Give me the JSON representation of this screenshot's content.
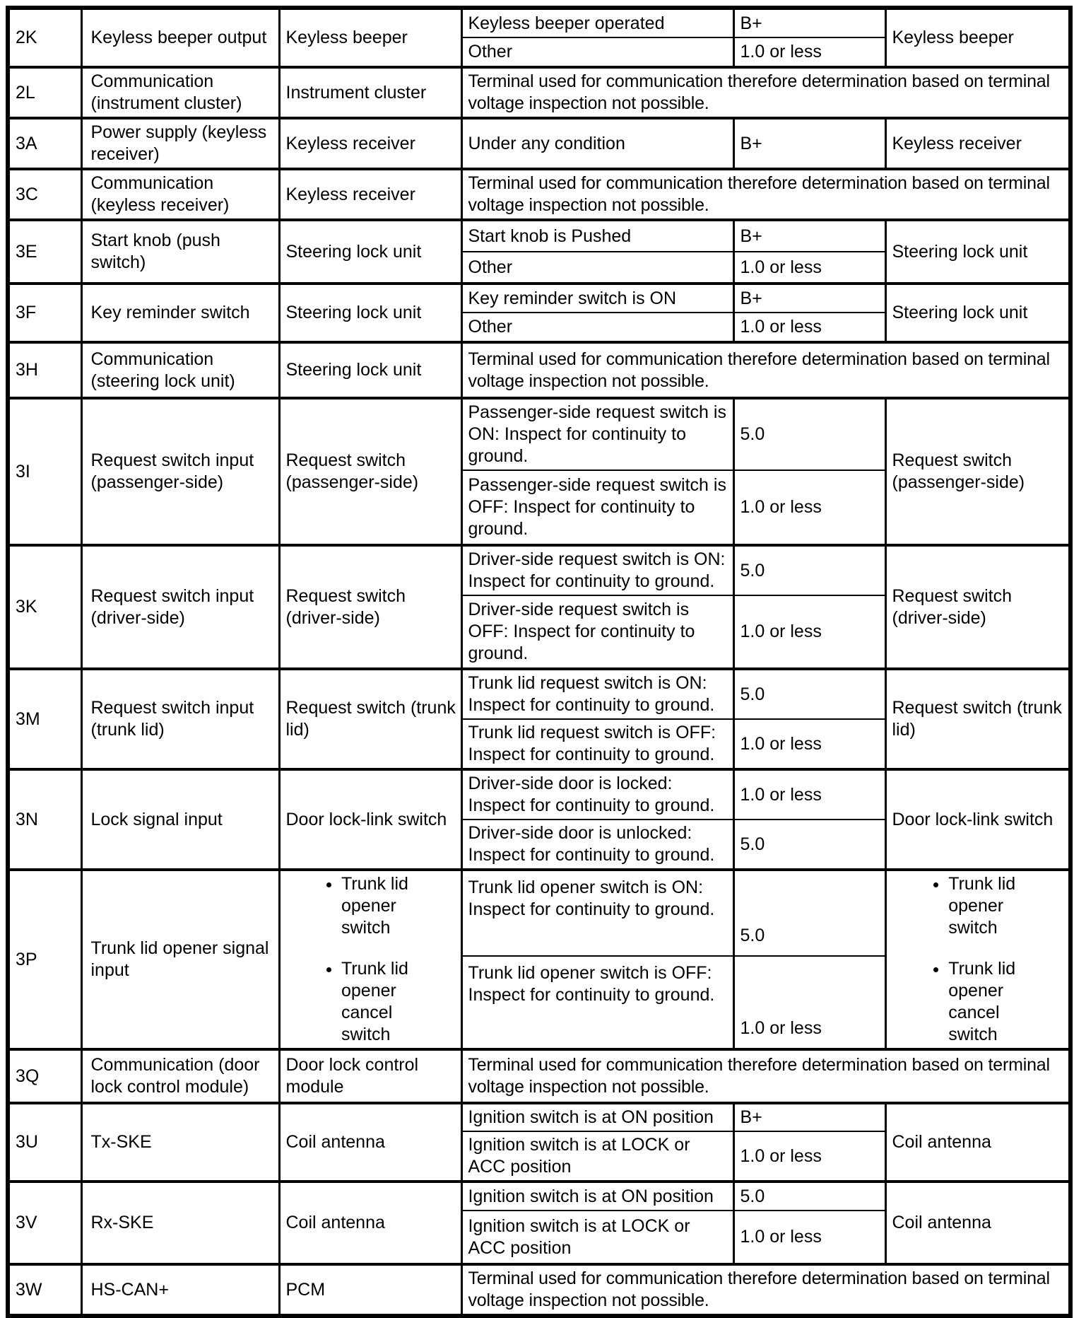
{
  "table": {
    "note_text": "Terminal used for communication therefore determination based on terminal voltage inspection not possible.",
    "rows": [
      {
        "terminal": "2K",
        "signal": "Keyless beeper output",
        "connected": "Keyless beeper",
        "conditions": [
          {
            "condition": "Keyless beeper operated",
            "voltage": "B+"
          },
          {
            "condition": "Other",
            "voltage": "1.0 or less"
          }
        ],
        "inspection": "Keyless beeper"
      },
      {
        "terminal": "2L",
        "signal": "Communication (instrument cluster)",
        "connected": "Instrument cluster",
        "note": true
      },
      {
        "terminal": "3A",
        "signal": "Power supply (keyless receiver)",
        "connected": "Keyless receiver",
        "conditions": [
          {
            "condition": "Under any condition",
            "voltage": "B+"
          }
        ],
        "inspection": "Keyless receiver"
      },
      {
        "terminal": "3C",
        "signal": "Communication (keyless receiver)",
        "connected": "Keyless receiver",
        "note": true
      },
      {
        "terminal": "3E",
        "signal": "Start knob (push switch)",
        "connected": "Steering lock unit",
        "conditions": [
          {
            "condition": "Start knob is Pushed",
            "voltage": "B+"
          },
          {
            "condition": "Other",
            "voltage": "1.0 or less"
          }
        ],
        "inspection": "Steering lock unit"
      },
      {
        "terminal": "3F",
        "signal": "Key reminder switch",
        "connected": "Steering lock unit",
        "conditions": [
          {
            "condition": "Key reminder switch is ON",
            "voltage": "B+"
          },
          {
            "condition": "Other",
            "voltage": "1.0 or less"
          }
        ],
        "inspection": "Steering lock unit"
      },
      {
        "terminal": "3H",
        "signal": "Communication (steering lock unit)",
        "connected": "Steering lock unit",
        "note": true
      },
      {
        "terminal": "3I",
        "signal": "Request switch input (passenger-side)",
        "connected": "Request switch (passenger-side)",
        "conditions": [
          {
            "condition": "Passenger-side request switch is ON: Inspect for continuity to ground.",
            "voltage": "5.0"
          },
          {
            "condition": "Passenger-side request switch is OFF: Inspect for continuity to ground.",
            "voltage": "1.0 or less"
          }
        ],
        "inspection": "Request switch (passenger-side)"
      },
      {
        "terminal": "3K",
        "signal": "Request switch input (driver-side)",
        "connected": "Request switch (driver-side)",
        "conditions": [
          {
            "condition": "Driver-side request switch is ON: Inspect for continuity to ground.",
            "voltage": "5.0"
          },
          {
            "condition": "Driver-side request switch is OFF: Inspect for continuity to ground.",
            "voltage": "1.0 or less"
          }
        ],
        "inspection": "Request switch (driver-side)"
      },
      {
        "terminal": "3M",
        "signal": "Request switch input (trunk lid)",
        "connected": "Request switch (trunk lid)",
        "conditions": [
          {
            "condition": "Trunk lid request switch is ON: Inspect for continuity to ground.",
            "voltage": "5.0"
          },
          {
            "condition": "Trunk lid request switch is OFF: Inspect for continuity to ground.",
            "voltage": "1.0 or less"
          }
        ],
        "inspection": "Request switch (trunk lid)"
      },
      {
        "terminal": "3N",
        "signal": "Lock signal input",
        "connected": "Door lock-link switch",
        "conditions": [
          {
            "condition": "Driver-side door is locked: Inspect for continuity to ground.",
            "voltage": "1.0 or less"
          },
          {
            "condition": "Driver-side door is unlocked: Inspect for continuity to ground.",
            "voltage": "5.0"
          }
        ],
        "inspection": "Door lock-link switch"
      },
      {
        "terminal": "3P",
        "signal": "Trunk lid opener signal input",
        "connected_list": [
          "Trunk lid opener switch",
          "Trunk lid opener cancel switch"
        ],
        "conditions": [
          {
            "condition": "Trunk lid opener switch is ON: Inspect for continuity to ground.",
            "voltage": "5.0"
          },
          {
            "condition": "Trunk lid opener switch is OFF: Inspect for continuity to ground.",
            "voltage": "1.0 or less"
          }
        ],
        "inspection_list": [
          "Trunk lid opener switch",
          "Trunk lid opener cancel switch"
        ]
      },
      {
        "terminal": "3Q",
        "signal": "Communication (door lock control module)",
        "connected": "Door lock control module",
        "note": true
      },
      {
        "terminal": "3U",
        "signal": "Tx-SKE",
        "connected": "Coil antenna",
        "conditions": [
          {
            "condition": "Ignition switch is at ON position",
            "voltage": "B+"
          },
          {
            "condition": "Ignition switch is at LOCK or ACC position",
            "voltage": "1.0 or less"
          }
        ],
        "inspection": "Coil antenna"
      },
      {
        "terminal": "3V",
        "signal": "Rx-SKE",
        "connected": "Coil antenna",
        "conditions": [
          {
            "condition": "Ignition switch is at ON position",
            "voltage": "5.0"
          },
          {
            "condition": "Ignition switch is at LOCK or ACC position",
            "voltage": "1.0 or less"
          }
        ],
        "inspection": "Coil antenna"
      },
      {
        "terminal": "3W",
        "signal": "HS-CAN+",
        "connected": "PCM",
        "note": true
      }
    ]
  }
}
